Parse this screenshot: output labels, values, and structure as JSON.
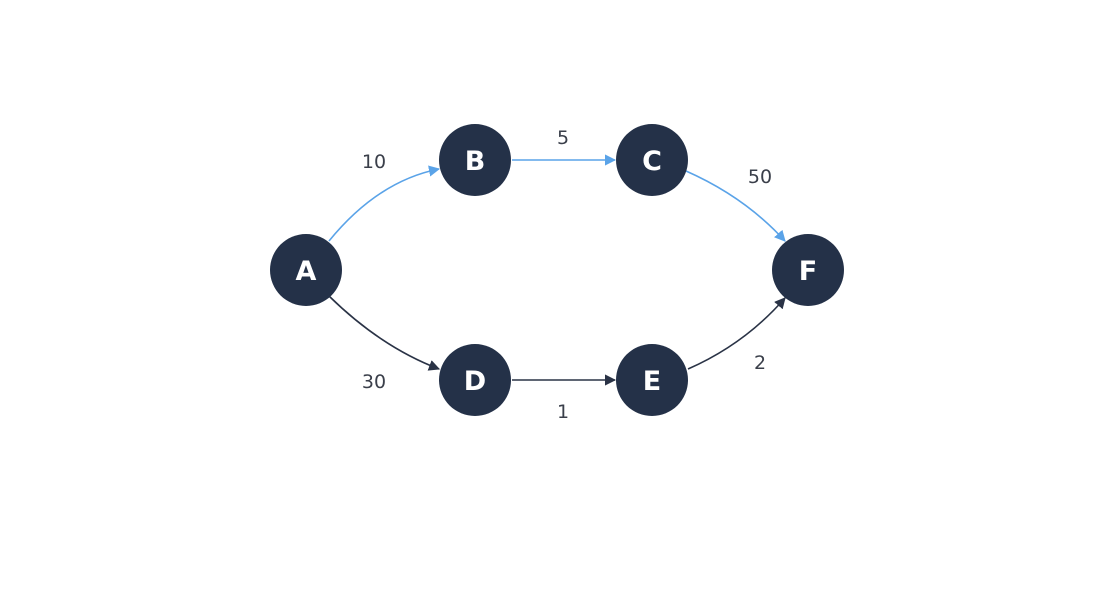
{
  "colors": {
    "node_fill": "#243148",
    "node_text": "#ffffff",
    "highlight_edge": "#5aa3e8",
    "default_edge": "#2a3346",
    "edge_label": "#3a3f4a"
  },
  "nodes": [
    {
      "id": "A",
      "label": "A"
    },
    {
      "id": "B",
      "label": "B"
    },
    {
      "id": "C",
      "label": "C"
    },
    {
      "id": "D",
      "label": "D"
    },
    {
      "id": "E",
      "label": "E"
    },
    {
      "id": "F",
      "label": "F"
    }
  ],
  "edges": [
    {
      "from": "A",
      "to": "B",
      "weight": "10",
      "highlighted": true
    },
    {
      "from": "B",
      "to": "C",
      "weight": "5",
      "highlighted": true
    },
    {
      "from": "C",
      "to": "F",
      "weight": "50",
      "highlighted": true
    },
    {
      "from": "A",
      "to": "D",
      "weight": "30",
      "highlighted": false
    },
    {
      "from": "D",
      "to": "E",
      "weight": "1",
      "highlighted": false
    },
    {
      "from": "E",
      "to": "F",
      "weight": "2",
      "highlighted": false
    }
  ]
}
